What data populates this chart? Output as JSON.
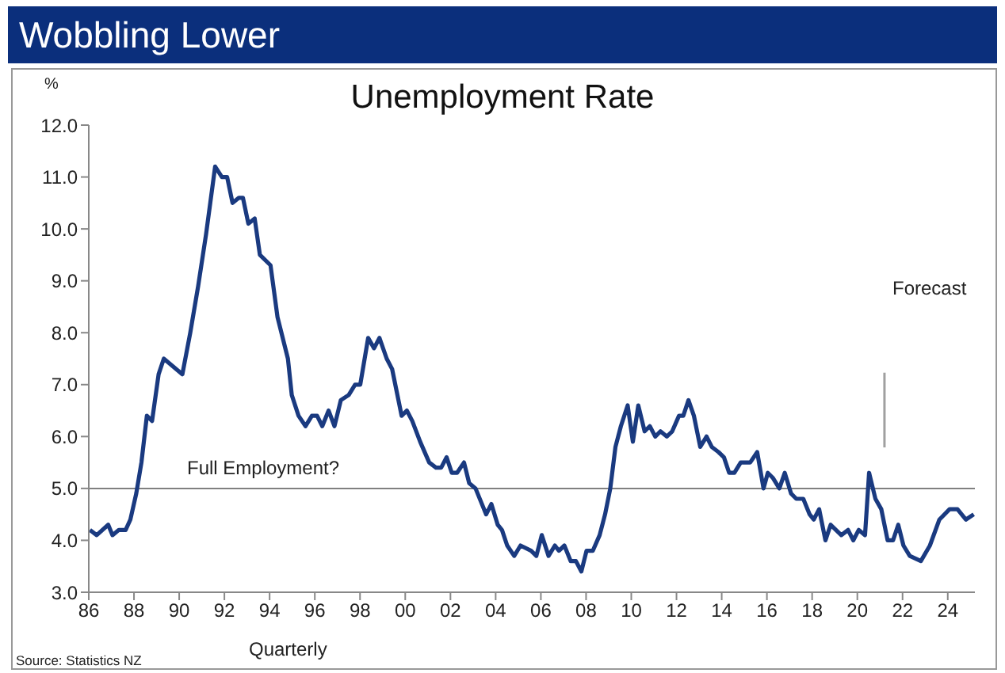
{
  "chart_data": {
    "type": "line",
    "title": "Wobbling Lower",
    "subtitle": "Unemployment Rate",
    "ylabel": "%",
    "xlabel": "Quarterly",
    "annotations": [
      "Source: Statistics NZ",
      "Forecast"
    ],
    "xlim": [
      1986,
      2025.2
    ],
    "xticks": [
      {
        "value": 1986,
        "label": "86"
      },
      {
        "value": 1988,
        "label": "88"
      },
      {
        "value": 1990,
        "label": "90"
      },
      {
        "value": 1992,
        "label": "92"
      },
      {
        "value": 1994,
        "label": "94"
      },
      {
        "value": 1996,
        "label": "96"
      },
      {
        "value": 1998,
        "label": "98"
      },
      {
        "value": 2000,
        "label": "00"
      },
      {
        "value": 2002,
        "label": "02"
      },
      {
        "value": 2004,
        "label": "04"
      },
      {
        "value": 2006,
        "label": "06"
      },
      {
        "value": 2008,
        "label": "08"
      },
      {
        "value": 2010,
        "label": "10"
      },
      {
        "value": 2012,
        "label": "12"
      },
      {
        "value": 2014,
        "label": "14"
      },
      {
        "value": 2016,
        "label": "16"
      },
      {
        "value": 2018,
        "label": "18"
      },
      {
        "value": 2020,
        "label": "20"
      },
      {
        "value": 2022,
        "label": "22"
      },
      {
        "value": 2024,
        "label": "24"
      }
    ],
    "ylim": [
      3,
      12
    ],
    "yticks": [
      {
        "value": 3,
        "label": "3.0"
      },
      {
        "value": 4,
        "label": "4.0"
      },
      {
        "value": 5,
        "label": "5.0"
      },
      {
        "value": 6,
        "label": "6.0"
      },
      {
        "value": 7,
        "label": "7.0"
      },
      {
        "value": 8,
        "label": "8.0"
      },
      {
        "value": 9,
        "label": "9.0"
      },
      {
        "value": 10,
        "label": "10.0"
      },
      {
        "value": 11,
        "label": "11.0"
      },
      {
        "value": 12,
        "label": "12.0"
      }
    ],
    "grid": false,
    "marker": "none",
    "line_style": "solid",
    "ref_lines": [
      {
        "axis": "y",
        "value": 5,
        "label": "Full Employment?",
        "color": "#808080"
      },
      {
        "axis": "x",
        "value": 2021.2,
        "color": "#a0a0a0"
      }
    ],
    "series": [
      {
        "color": "#1a3a80",
        "x": [
          1986.05,
          1986.35,
          1986.86,
          1987.05,
          1987.33,
          1987.63,
          1987.84,
          1988.1,
          1988.33,
          1988.57,
          1988.8,
          1989.09,
          1989.32,
          1990.14,
          1990.49,
          1990.84,
          1991.19,
          1991.59,
          1991.89,
          1992.12,
          1992.36,
          1992.64,
          1992.82,
          1993.06,
          1993.34,
          1993.57,
          1994.04,
          1994.35,
          1994.81,
          1994.98,
          1995.28,
          1995.59,
          1995.87,
          1996.1,
          1996.33,
          1996.61,
          1996.87,
          1997.15,
          1997.5,
          1997.78,
          1998.01,
          1998.36,
          1998.62,
          1998.86,
          1999.18,
          1999.42,
          1999.84,
          2000.07,
          2000.31,
          2000.66,
          2001.06,
          2001.36,
          2001.59,
          2001.83,
          2002.06,
          2002.29,
          2002.6,
          2002.83,
          2003.11,
          2003.58,
          2003.81,
          2004.09,
          2004.28,
          2004.51,
          2004.82,
          2005.1,
          2005.57,
          2005.8,
          2006.04,
          2006.34,
          2006.62,
          2006.8,
          2007.04,
          2007.32,
          2007.55,
          2007.79,
          2008.02,
          2008.3,
          2008.6,
          2008.84,
          2009.07,
          2009.3,
          2009.54,
          2009.84,
          2010.07,
          2010.31,
          2010.59,
          2010.82,
          2011.06,
          2011.29,
          2011.57,
          2011.81,
          2012.11,
          2012.3,
          2012.53,
          2012.77,
          2013.05,
          2013.33,
          2013.56,
          2013.86,
          2014.1,
          2014.33,
          2014.56,
          2014.84,
          2015.26,
          2015.57,
          2015.85,
          2016.04,
          2016.27,
          2016.55,
          2016.79,
          2017.07,
          2017.3,
          2017.61,
          2017.89,
          2018.07,
          2018.31,
          2018.59,
          2018.82,
          2019.29,
          2019.59,
          2019.82,
          2020.06,
          2020.34,
          2020.52,
          2020.8,
          2021.06,
          2021.34,
          2021.58,
          2021.81,
          2022.04,
          2022.32,
          2022.81,
          2023.21,
          2023.63,
          2024.08,
          2024.43,
          2024.8,
          2025.15
        ],
        "values": [
          4.2,
          4.1,
          4.3,
          4.1,
          4.2,
          4.2,
          4.4,
          4.9,
          5.5,
          6.4,
          6.3,
          7.2,
          7.5,
          7.2,
          8.0,
          8.9,
          9.9,
          11.2,
          11.0,
          11.0,
          10.5,
          10.6,
          10.6,
          10.1,
          10.2,
          9.5,
          9.3,
          8.3,
          7.5,
          6.8,
          6.4,
          6.2,
          6.4,
          6.4,
          6.2,
          6.5,
          6.2,
          6.7,
          6.8,
          7.0,
          7.0,
          7.9,
          7.7,
          7.9,
          7.5,
          7.3,
          6.4,
          6.5,
          6.3,
          5.9,
          5.5,
          5.4,
          5.4,
          5.6,
          5.3,
          5.3,
          5.5,
          5.1,
          5.0,
          4.5,
          4.7,
          4.3,
          4.2,
          3.9,
          3.7,
          3.9,
          3.8,
          3.7,
          4.1,
          3.7,
          3.9,
          3.8,
          3.9,
          3.6,
          3.6,
          3.4,
          3.8,
          3.8,
          4.1,
          4.5,
          5.0,
          5.8,
          6.2,
          6.6,
          5.9,
          6.6,
          6.1,
          6.2,
          6.0,
          6.1,
          6.0,
          6.1,
          6.4,
          6.4,
          6.7,
          6.4,
          5.8,
          6.0,
          5.8,
          5.7,
          5.6,
          5.3,
          5.3,
          5.5,
          5.5,
          5.7,
          5.0,
          5.3,
          5.2,
          5.0,
          5.3,
          4.9,
          4.8,
          4.8,
          4.5,
          4.4,
          4.6,
          4.0,
          4.3,
          4.1,
          4.2,
          4.0,
          4.2,
          4.1,
          5.3,
          4.8,
          4.6,
          4.0,
          4.0,
          4.3,
          3.9,
          3.7,
          3.6,
          3.9,
          4.4,
          4.6,
          4.6,
          4.4,
          4.5
        ]
      }
    ]
  }
}
